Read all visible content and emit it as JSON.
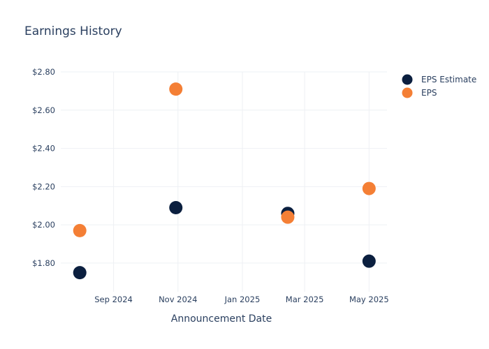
{
  "chart_data": {
    "type": "scatter",
    "title": "Earnings History",
    "xlabel": "Announcement Date",
    "ylabel": "",
    "x_ticks": [
      {
        "date": "2024-09-01",
        "label": "Sep 2024"
      },
      {
        "date": "2024-11-01",
        "label": "Nov 2024"
      },
      {
        "date": "2025-01-01",
        "label": "Jan 2025"
      },
      {
        "date": "2025-03-01",
        "label": "Mar 2025"
      },
      {
        "date": "2025-05-01",
        "label": "May 2025"
      }
    ],
    "xlim": [
      "2024-07-13",
      "2025-05-18"
    ],
    "y_ticks": [
      {
        "value": 1.8,
        "label": "$1.80"
      },
      {
        "value": 2.0,
        "label": "$2.00"
      },
      {
        "value": 2.2,
        "label": "$2.20"
      },
      {
        "value": 2.4,
        "label": "$2.40"
      },
      {
        "value": 2.6,
        "label": "$2.60"
      },
      {
        "value": 2.8,
        "label": "$2.80"
      }
    ],
    "ylim": [
      1.65,
      2.8
    ],
    "grid": true,
    "legend_position": "top-right",
    "series": [
      {
        "name": "EPS Estimate",
        "color": "#0b1f3f",
        "points": [
          {
            "x": "2024-07-31",
            "y": 1.75
          },
          {
            "x": "2024-10-30",
            "y": 2.09
          },
          {
            "x": "2025-02-13",
            "y": 2.06
          },
          {
            "x": "2025-05-01",
            "y": 1.81
          }
        ]
      },
      {
        "name": "EPS",
        "color": "#f47f35",
        "points": [
          {
            "x": "2024-07-31",
            "y": 1.97
          },
          {
            "x": "2024-10-30",
            "y": 2.71
          },
          {
            "x": "2025-02-13",
            "y": 2.04
          },
          {
            "x": "2025-05-01",
            "y": 2.19
          }
        ]
      }
    ]
  }
}
